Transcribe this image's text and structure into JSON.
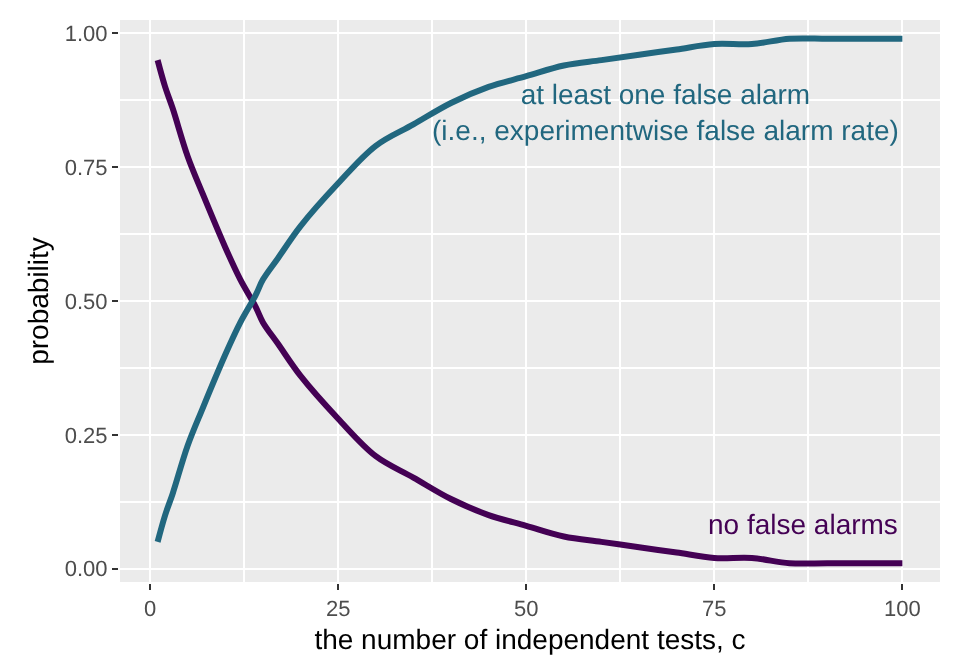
{
  "chart_data": {
    "type": "line",
    "xlabel": "the number of independent tests, c",
    "ylabel": "probability",
    "xlim": [
      -4,
      105
    ],
    "xticks": [
      0,
      25,
      50,
      75,
      100
    ],
    "ylim": [
      -0.025,
      1.025
    ],
    "yticks": [
      {
        "value": 0,
        "label": "0.00"
      },
      {
        "value": 0.25,
        "label": "0.25"
      },
      {
        "value": 0.5,
        "label": "0.50"
      },
      {
        "value": 0.75,
        "label": "0.75"
      },
      {
        "value": 1,
        "label": "1.00"
      }
    ],
    "grid": true,
    "legend": false,
    "marker": "none",
    "line_style": "solid",
    "x": [
      1,
      2,
      3,
      5,
      7,
      10,
      12,
      14,
      15,
      17,
      20,
      25,
      30,
      35,
      40,
      45,
      50,
      55,
      60,
      65,
      70,
      75,
      80,
      85,
      90,
      95,
      100
    ],
    "series": [
      {
        "name": "no false alarms",
        "color": "#440154",
        "values": [
          0.95,
          0.9,
          0.86,
          0.77,
          0.7,
          0.6,
          0.54,
          0.49,
          0.46,
          0.42,
          0.36,
          0.28,
          0.21,
          0.17,
          0.13,
          0.1,
          0.08,
          0.06,
          0.05,
          0.04,
          0.03,
          0.02,
          0.02,
          0.01,
          0.01,
          0.01,
          0.01
        ]
      },
      {
        "name": "at least one false alarm\n(i.e., experimentwise false alarm rate)",
        "color": "#21677f",
        "values": [
          0.05,
          0.1,
          0.14,
          0.23,
          0.3,
          0.4,
          0.46,
          0.51,
          0.54,
          0.58,
          0.64,
          0.72,
          0.79,
          0.83,
          0.87,
          0.9,
          0.92,
          0.94,
          0.95,
          0.96,
          0.97,
          0.98,
          0.98,
          0.99,
          0.99,
          0.99,
          0.99
        ]
      }
    ]
  }
}
